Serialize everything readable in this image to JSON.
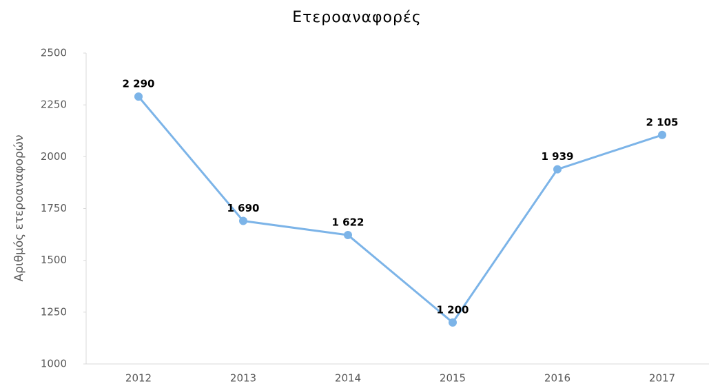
{
  "chart_data": {
    "type": "line",
    "title": "Ετεροαναφορές",
    "y_label": "Αριθμός ετεροαναφορών",
    "categories": [
      "2012",
      "2013",
      "2014",
      "2015",
      "2016",
      "2017"
    ],
    "series": [
      {
        "name": "Ετεροαναφορές",
        "color": "#7cb4e8",
        "values": [
          2290,
          1690,
          1622,
          1200,
          1939,
          2105
        ],
        "value_labels": [
          "2 290",
          "1 690",
          "1 622",
          "1 200",
          "1 939",
          "2 105"
        ]
      }
    ],
    "ylim": [
      1000,
      2500
    ],
    "yticks": [
      1000,
      1250,
      1500,
      1750,
      2000,
      2250,
      2500
    ],
    "grid": false
  }
}
